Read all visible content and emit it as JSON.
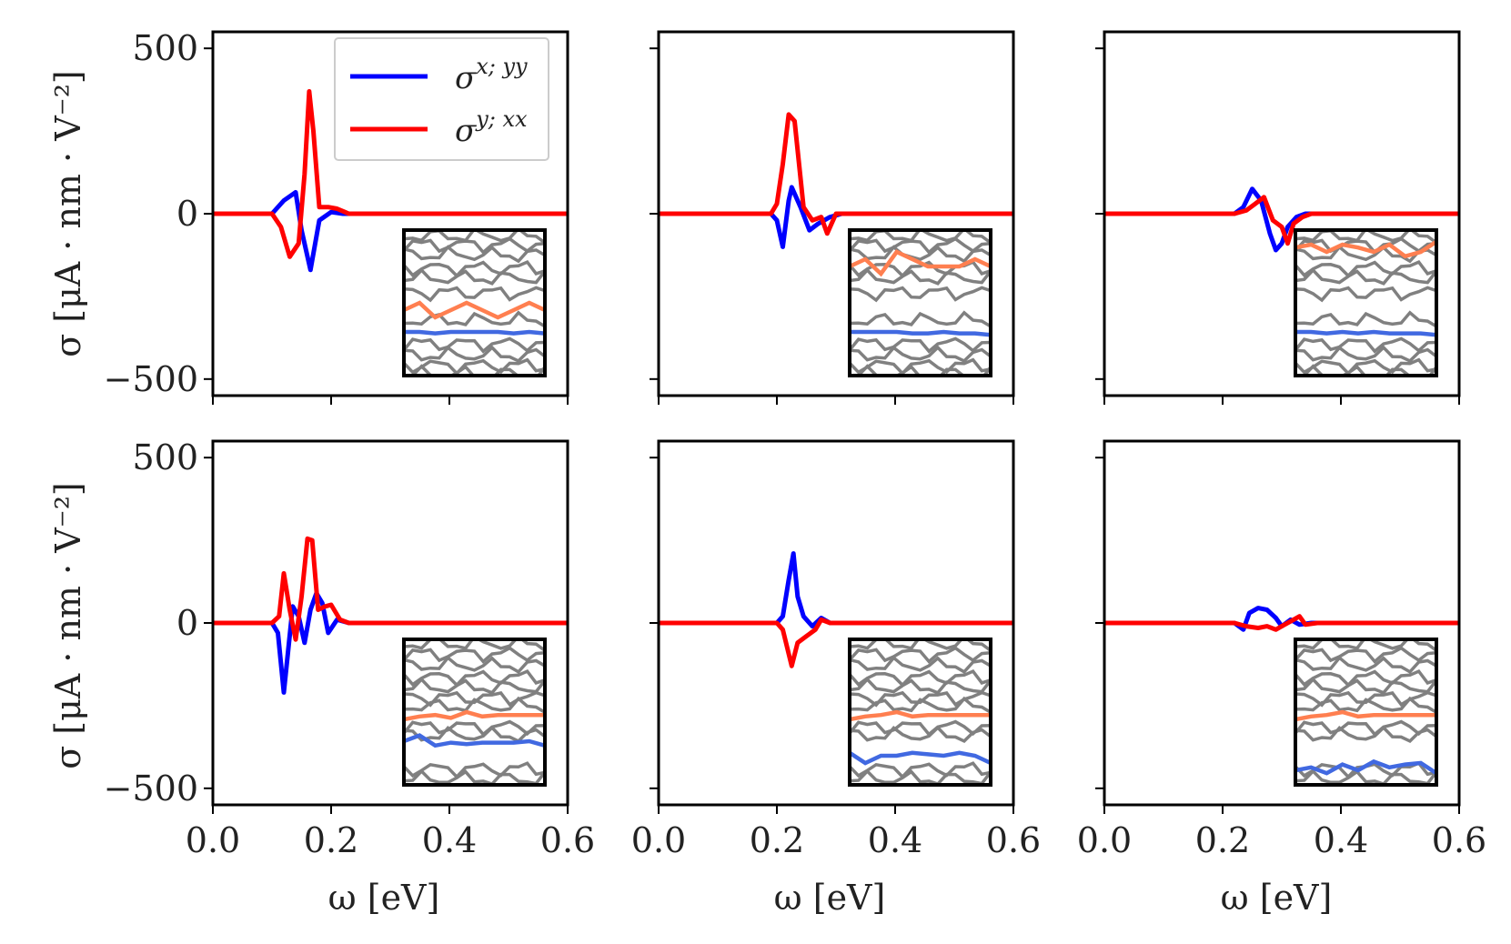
{
  "chart_data": {
    "type": "line",
    "layout": "2x3 grid of subplots",
    "xlabel": "ω [eV]",
    "ylabel": "σ [μA · nm · V⁻²]",
    "xlim": [
      0.0,
      0.6
    ],
    "ylim": [
      -550,
      550
    ],
    "x_ticks": [
      "0.0",
      "0.2",
      "0.4",
      "0.6"
    ],
    "y_ticks": [
      "500",
      "0",
      "−500"
    ],
    "legend": [
      {
        "key": "xyy",
        "label": "σ^{x;yy}",
        "label_base": "σ",
        "label_sup": "x; yy",
        "color": "#0000ff"
      },
      {
        "key": "yxx",
        "label": "σ^{y;xx}",
        "label_base": "σ",
        "label_sup": "y; xx",
        "color": "#ff0000"
      }
    ],
    "inset": {
      "description": "band structure",
      "grey_color": "#808080",
      "orange_color": "#ff7f50",
      "blue_color": "#4169e1"
    },
    "panels": [
      {
        "series": [
          {
            "name": "σ^{x;yy}",
            "color": "#0000ff",
            "x": [
              0.0,
              0.1,
              0.12,
              0.14,
              0.15,
              0.165,
              0.18,
              0.2,
              0.22,
              0.25,
              0.6
            ],
            "values": [
              0,
              0,
              40,
              65,
              -50,
              -170,
              -20,
              5,
              0,
              0,
              0
            ]
          },
          {
            "name": "σ^{y;xx}",
            "color": "#ff0000",
            "x": [
              0.0,
              0.1,
              0.115,
              0.13,
              0.145,
              0.155,
              0.163,
              0.17,
              0.18,
              0.195,
              0.21,
              0.23,
              0.6
            ],
            "values": [
              0,
              0,
              -40,
              -130,
              -90,
              120,
              370,
              250,
              20,
              20,
              15,
              0,
              0
            ]
          }
        ],
        "inset": {
          "orange_band": [
            0.55,
            0.5,
            0.6,
            0.55,
            0.5,
            0.55,
            0.6,
            0.55,
            0.5,
            0.55
          ],
          "blue_band": [
            0.7,
            0.7,
            0.71,
            0.7,
            0.7,
            0.7,
            0.7,
            0.71,
            0.7,
            0.71
          ]
        }
      },
      {
        "series": [
          {
            "name": "σ^{x;yy}",
            "color": "#0000ff",
            "x": [
              0.0,
              0.19,
              0.2,
              0.21,
              0.22,
              0.225,
              0.24,
              0.255,
              0.27,
              0.29,
              0.31,
              0.6
            ],
            "values": [
              0,
              0,
              -20,
              -100,
              40,
              80,
              20,
              -50,
              -30,
              -10,
              0,
              0
            ]
          },
          {
            "name": "σ^{y;xx}",
            "color": "#ff0000",
            "x": [
              0.0,
              0.19,
              0.2,
              0.21,
              0.22,
              0.23,
              0.245,
              0.26,
              0.275,
              0.285,
              0.3,
              0.6
            ],
            "values": [
              0,
              0,
              30,
              150,
              300,
              280,
              20,
              -20,
              -10,
              -60,
              0,
              0
            ]
          }
        ],
        "inset": {
          "orange_band": [
            0.25,
            0.2,
            0.3,
            0.15,
            0.2,
            0.25,
            0.25,
            0.25,
            0.2,
            0.25
          ],
          "blue_band": [
            0.7,
            0.7,
            0.7,
            0.7,
            0.71,
            0.71,
            0.7,
            0.71,
            0.71,
            0.72
          ]
        }
      },
      {
        "series": [
          {
            "name": "σ^{x;yy}",
            "color": "#0000ff",
            "x": [
              0.0,
              0.22,
              0.235,
              0.25,
              0.265,
              0.28,
              0.29,
              0.3,
              0.31,
              0.325,
              0.34,
              0.6
            ],
            "values": [
              0,
              0,
              20,
              75,
              40,
              -60,
              -110,
              -90,
              -40,
              -10,
              0,
              0
            ]
          },
          {
            "name": "σ^{y;xx}",
            "color": "#ff0000",
            "x": [
              0.0,
              0.22,
              0.24,
              0.255,
              0.27,
              0.285,
              0.3,
              0.31,
              0.32,
              0.335,
              0.35,
              0.6
            ],
            "values": [
              0,
              0,
              10,
              30,
              50,
              -20,
              -40,
              -90,
              -30,
              -10,
              0,
              0
            ]
          }
        ],
        "inset": {
          "orange_band": [
            0.12,
            0.1,
            0.15,
            0.1,
            0.12,
            0.15,
            0.1,
            0.18,
            0.15,
            0.08
          ],
          "blue_band": [
            0.7,
            0.7,
            0.71,
            0.7,
            0.71,
            0.7,
            0.71,
            0.71,
            0.71,
            0.72
          ]
        }
      },
      {
        "series": [
          {
            "name": "σ^{x;yy}",
            "color": "#0000ff",
            "x": [
              0.0,
              0.1,
              0.11,
              0.12,
              0.135,
              0.145,
              0.155,
              0.165,
              0.175,
              0.185,
              0.195,
              0.21,
              0.23,
              0.6
            ],
            "values": [
              0,
              0,
              -30,
              -210,
              50,
              20,
              -60,
              40,
              90,
              60,
              -30,
              10,
              0,
              0
            ]
          },
          {
            "name": "σ^{y;xx}",
            "color": "#ff0000",
            "x": [
              0.0,
              0.1,
              0.112,
              0.12,
              0.13,
              0.14,
              0.15,
              0.16,
              0.168,
              0.178,
              0.19,
              0.2,
              0.215,
              0.23,
              0.6
            ],
            "values": [
              0,
              0,
              20,
              150,
              40,
              -50,
              80,
              255,
              250,
              40,
              50,
              55,
              10,
              0,
              0
            ]
          }
        ],
        "inset": {
          "orange_band": [
            0.55,
            0.53,
            0.52,
            0.54,
            0.5,
            0.53,
            0.52,
            0.52,
            0.52,
            0.52
          ],
          "blue_band": [
            0.7,
            0.66,
            0.73,
            0.71,
            0.72,
            0.71,
            0.71,
            0.71,
            0.7,
            0.73
          ]
        }
      },
      {
        "series": [
          {
            "name": "σ^{x;yy}",
            "color": "#0000ff",
            "x": [
              0.0,
              0.2,
              0.21,
              0.22,
              0.228,
              0.235,
              0.245,
              0.26,
              0.275,
              0.29,
              0.6
            ],
            "values": [
              0,
              0,
              20,
              130,
              210,
              80,
              20,
              -10,
              15,
              0,
              0
            ]
          },
          {
            "name": "σ^{y;xx}",
            "color": "#ff0000",
            "x": [
              0.0,
              0.2,
              0.21,
              0.225,
              0.235,
              0.25,
              0.265,
              0.275,
              0.29,
              0.6
            ],
            "values": [
              0,
              0,
              -20,
              -130,
              -60,
              -40,
              -20,
              10,
              0,
              0
            ]
          }
        ],
        "inset": {
          "orange_band": [
            0.55,
            0.53,
            0.52,
            0.5,
            0.53,
            0.52,
            0.52,
            0.52,
            0.52,
            0.52
          ],
          "blue_band": [
            0.78,
            0.85,
            0.8,
            0.8,
            0.78,
            0.79,
            0.8,
            0.78,
            0.8,
            0.85
          ]
        }
      },
      {
        "series": [
          {
            "name": "σ^{x;yy}",
            "color": "#0000ff",
            "x": [
              0.0,
              0.22,
              0.235,
              0.245,
              0.26,
              0.275,
              0.29,
              0.3,
              0.315,
              0.33,
              0.35,
              0.6
            ],
            "values": [
              0,
              0,
              -20,
              30,
              45,
              40,
              15,
              -10,
              10,
              -5,
              0,
              0
            ]
          },
          {
            "name": "σ^{y;xx}",
            "color": "#ff0000",
            "x": [
              0.0,
              0.22,
              0.24,
              0.26,
              0.275,
              0.29,
              0.3,
              0.315,
              0.33,
              0.34,
              0.36,
              0.6
            ],
            "values": [
              0,
              0,
              -10,
              -15,
              -10,
              -20,
              -10,
              5,
              20,
              -5,
              0,
              0
            ]
          }
        ],
        "inset": {
          "orange_band": [
            0.55,
            0.53,
            0.52,
            0.5,
            0.53,
            0.52,
            0.52,
            0.52,
            0.52,
            0.52
          ],
          "blue_band": [
            0.9,
            0.88,
            0.92,
            0.86,
            0.9,
            0.84,
            0.88,
            0.86,
            0.85,
            0.92
          ]
        }
      }
    ]
  }
}
